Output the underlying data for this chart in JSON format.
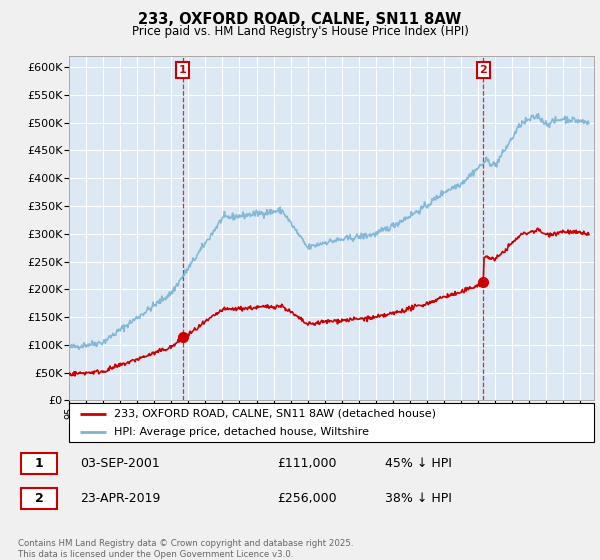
{
  "title": "233, OXFORD ROAD, CALNE, SN11 8AW",
  "subtitle": "Price paid vs. HM Land Registry's House Price Index (HPI)",
  "ylim": [
    0,
    620000
  ],
  "yticks": [
    0,
    50000,
    100000,
    150000,
    200000,
    250000,
    300000,
    350000,
    400000,
    450000,
    500000,
    550000,
    600000
  ],
  "bg_color": "#f0f0f0",
  "plot_bg_color": "#dce9f5",
  "grid_color": "#ffffff",
  "hpi_color": "#7ab3d4",
  "price_color": "#cc0000",
  "marker1_x": 2001.67,
  "marker1_price": 111000,
  "marker2_x": 2019.31,
  "marker2_price": 256000,
  "footer": "Contains HM Land Registry data © Crown copyright and database right 2025.\nThis data is licensed under the Open Government Licence v3.0.",
  "legend_entry1": "233, OXFORD ROAD, CALNE, SN11 8AW (detached house)",
  "legend_entry2": "HPI: Average price, detached house, Wiltshire",
  "table_row1": [
    "1",
    "03-SEP-2001",
    "£111,000",
    "45% ↓ HPI"
  ],
  "table_row2": [
    "2",
    "23-APR-2019",
    "£256,000",
    "38% ↓ HPI"
  ]
}
